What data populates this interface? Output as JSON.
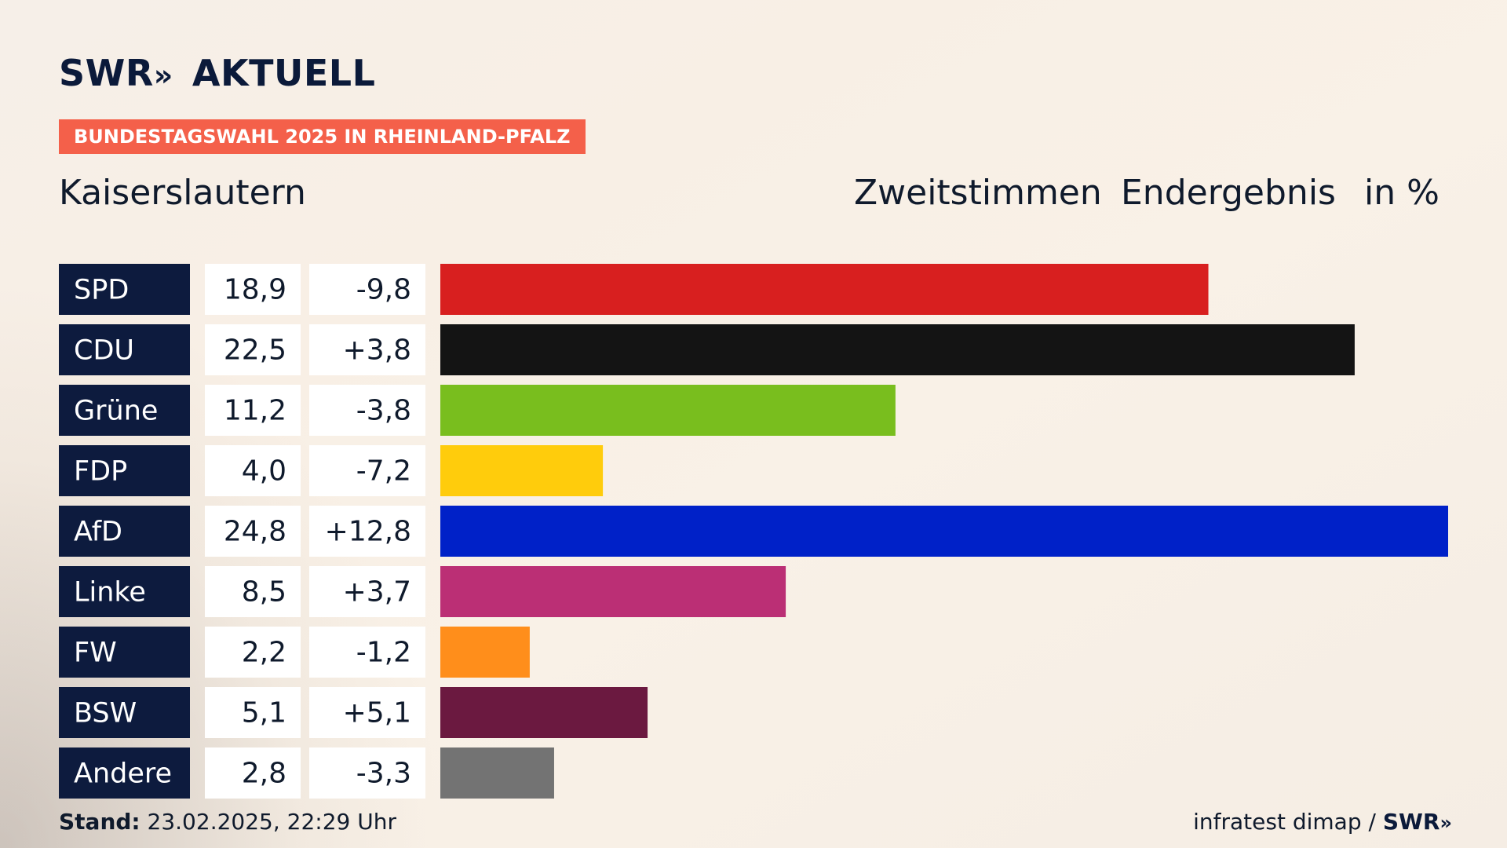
{
  "brand": {
    "name": "SWR",
    "arrows": "»",
    "product": "AKTUELL"
  },
  "tag_label": "BUNDESTAGSWAHL 2025 IN RHEINLAND-PFALZ",
  "region": "Kaiserslautern",
  "header": {
    "vote_type": "Zweitstimmen",
    "status": "Endergebnis",
    "unit": "in %"
  },
  "footer": {
    "stand_label": "Stand:",
    "stand_value": "23.02.2025, 22:29 Uhr",
    "source": "infratest dimap /",
    "source_brand": "SWR",
    "source_arrows": "»"
  },
  "colors": {
    "label_box": "#0d1b3e",
    "value_box": "#ffffff",
    "tag": "#f4604a"
  },
  "chart_data": {
    "type": "bar",
    "orientation": "horizontal",
    "categories": [
      "SPD",
      "CDU",
      "Grüne",
      "FDP",
      "AfD",
      "Linke",
      "FW",
      "BSW",
      "Andere"
    ],
    "values": [
      18.9,
      22.5,
      11.2,
      4.0,
      24.8,
      8.5,
      2.2,
      5.1,
      2.8
    ],
    "value_labels": [
      "18,9",
      "22,5",
      "11,2",
      "4,0",
      "24,8",
      "8,5",
      "2,2",
      "5,1",
      "2,8"
    ],
    "changes": [
      -9.8,
      3.8,
      -3.8,
      -7.2,
      12.8,
      3.7,
      -1.2,
      5.1,
      -3.3
    ],
    "change_labels": [
      "-9,8",
      "+3,8",
      "-3,8",
      "-7,2",
      "+12,8",
      "+3,7",
      "-1,2",
      "+5,1",
      "-3,3"
    ],
    "bar_colors": [
      "#d81f1f",
      "#141414",
      "#79be1e",
      "#ffcc0c",
      "#0021c8",
      "#bb2f75",
      "#ff8e1b",
      "#6b1940",
      "#737373"
    ],
    "xlim": [
      0,
      24.8
    ],
    "grid": false,
    "legend": "none"
  }
}
